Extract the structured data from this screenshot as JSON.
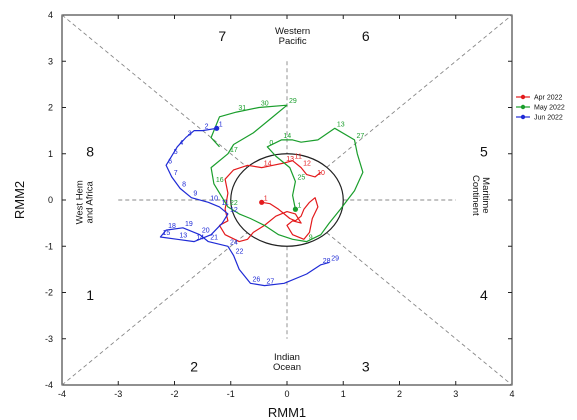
{
  "chart_data": {
    "type": "line",
    "xlabel": "RMM1",
    "ylabel": "RMM2",
    "xlim": [
      -4,
      4
    ],
    "ylim": [
      -4,
      4
    ],
    "xticks": [
      "-4",
      "-3",
      "-2",
      "-1",
      "0",
      "1",
      "2",
      "3",
      "4"
    ],
    "yticks": [
      "-4",
      "-3",
      "-2",
      "-1",
      "0",
      "1",
      "2",
      "3",
      "4"
    ],
    "phase_numbers": [
      {
        "label": "1",
        "x": -3.5,
        "y": -2.05
      },
      {
        "label": "2",
        "x": -1.65,
        "y": -3.6
      },
      {
        "label": "3",
        "x": 1.4,
        "y": -3.6
      },
      {
        "label": "4",
        "x": 3.5,
        "y": -2.05
      },
      {
        "label": "5",
        "x": 3.5,
        "y": 1.05
      },
      {
        "label": "6",
        "x": 1.4,
        "y": 3.55
      },
      {
        "label": "7",
        "x": -1.15,
        "y": 3.55
      },
      {
        "label": "8",
        "x": -3.5,
        "y": 1.05
      }
    ],
    "regions": [
      {
        "lines": [
          "Western",
          "Pacific"
        ],
        "x": 0.1,
        "y": 3.55,
        "rotate": 0
      },
      {
        "lines": [
          "Indian",
          "Ocean"
        ],
        "x": 0.0,
        "y": -3.5,
        "rotate": 0
      },
      {
        "lines": [
          "West Hem",
          "and Africa"
        ],
        "x": -3.6,
        "y": -0.05,
        "rotate": -90
      },
      {
        "lines": [
          "Maritime",
          "Continent"
        ],
        "x": 3.45,
        "y": 0.1,
        "rotate": 90
      }
    ],
    "unit_circle_radius": 1,
    "grid": false,
    "legend_position": "right",
    "series": [
      {
        "name": "Apr 2022",
        "color": "#e31a1c",
        "points": [
          [
            -0.45,
            -0.05
          ],
          [
            -0.3,
            -0.08
          ],
          [
            -0.15,
            -0.2
          ],
          [
            -0.05,
            -0.3
          ],
          [
            0.05,
            -0.4
          ],
          [
            0.15,
            -0.45
          ],
          [
            0.25,
            -0.35
          ],
          [
            0.3,
            -0.2
          ],
          [
            0.4,
            -0.05
          ],
          [
            0.5,
            0.05
          ],
          [
            0.55,
            -0.15
          ],
          [
            0.45,
            -0.4
          ],
          [
            0.4,
            -0.7
          ],
          [
            0.3,
            -0.85
          ],
          [
            0.1,
            -0.75
          ],
          [
            0.0,
            -0.55
          ],
          [
            0.1,
            -0.45
          ],
          [
            0.25,
            -0.5
          ],
          [
            0.15,
            -0.3
          ],
          [
            0.0,
            -0.25
          ],
          [
            -0.2,
            -0.35
          ],
          [
            -0.4,
            -0.55
          ],
          [
            -0.6,
            -0.7
          ],
          [
            -0.7,
            -0.85
          ],
          [
            -0.85,
            -0.9
          ],
          [
            -1.1,
            -0.75
          ],
          [
            -1.2,
            -0.55
          ],
          [
            -1.05,
            -0.45
          ],
          [
            -1.1,
            -0.2
          ],
          [
            -1.05,
            0.15
          ],
          [
            -1.1,
            0.45
          ],
          [
            -0.95,
            0.65
          ],
          [
            -0.7,
            0.75
          ],
          [
            -0.45,
            0.7
          ],
          [
            -0.25,
            0.75
          ],
          [
            -0.05,
            0.8
          ],
          [
            0.1,
            0.85
          ],
          [
            0.25,
            0.7
          ],
          [
            0.35,
            0.55
          ],
          [
            0.5,
            0.5
          ],
          [
            0.6,
            0.6
          ]
        ],
        "labels": [
          {
            "text": "1",
            "at": 0
          },
          {
            "text": "14",
            "at": 33
          },
          {
            "text": "13",
            "at": 35
          },
          {
            "text": "11",
            "at": 36
          },
          {
            "text": "12",
            "at": 37
          },
          {
            "text": "10",
            "at": 39
          }
        ],
        "start_marker": [
          -0.45,
          -0.05
        ]
      },
      {
        "name": "May 2022",
        "color": "#1a9e2c",
        "points": [
          [
            0.15,
            -0.2
          ],
          [
            0.1,
            0.1
          ],
          [
            0.15,
            0.4
          ],
          [
            0.05,
            0.7
          ],
          [
            -0.2,
            0.95
          ],
          [
            -0.35,
            1.15
          ],
          [
            -0.1,
            1.3
          ],
          [
            0.1,
            1.3
          ],
          [
            0.25,
            1.25
          ],
          [
            0.55,
            1.3
          ],
          [
            0.85,
            1.55
          ],
          [
            1.2,
            1.3
          ],
          [
            1.25,
            1.0
          ],
          [
            1.35,
            0.6
          ],
          [
            1.2,
            0.2
          ],
          [
            0.95,
            -0.2
          ],
          [
            0.75,
            -0.5
          ],
          [
            0.6,
            -0.75
          ],
          [
            0.35,
            -0.9
          ],
          [
            0.1,
            -0.85
          ],
          [
            -0.15,
            -0.75
          ],
          [
            -0.4,
            -0.55
          ],
          [
            -0.65,
            -0.4
          ],
          [
            -0.85,
            -0.3
          ],
          [
            -1.05,
            -0.15
          ],
          [
            -1.15,
            0.05
          ],
          [
            -1.3,
            0.35
          ],
          [
            -1.35,
            0.7
          ],
          [
            -1.05,
            1.0
          ],
          [
            -0.95,
            1.2
          ],
          [
            -0.6,
            1.45
          ],
          [
            -0.3,
            1.75
          ],
          [
            0.0,
            2.05
          ],
          [
            -0.5,
            2.0
          ],
          [
            -0.9,
            1.9
          ],
          [
            -1.2,
            1.8
          ],
          [
            -1.35,
            1.35
          ],
          [
            -1.2,
            1.15
          ]
        ],
        "labels": [
          {
            "text": "1",
            "at": 0
          },
          {
            "text": "9",
            "at": 18
          },
          {
            "text": "16",
            "at": 26
          },
          {
            "text": "17",
            "at": 28
          },
          {
            "text": "22",
            "at": 24
          },
          {
            "text": "25",
            "at": 2
          },
          {
            "text": "27",
            "at": 11
          },
          {
            "text": "29",
            "at": 32
          },
          {
            "text": "30",
            "at": 33
          },
          {
            "text": "31",
            "at": 34
          },
          {
            "text": "14",
            "at": 6
          },
          {
            "text": "13",
            "at": 10
          },
          {
            "text": "0",
            "at": 5
          }
        ],
        "start_marker": [
          0.15,
          -0.2
        ]
      },
      {
        "name": "Jun 2022",
        "color": "#1f2bd6",
        "points": [
          [
            -1.25,
            1.55
          ],
          [
            -1.5,
            1.5
          ],
          [
            -1.65,
            1.5
          ],
          [
            -1.8,
            1.35
          ],
          [
            -1.95,
            1.15
          ],
          [
            -2.05,
            0.95
          ],
          [
            -2.15,
            0.75
          ],
          [
            -2.05,
            0.5
          ],
          [
            -1.9,
            0.25
          ],
          [
            -1.7,
            0.05
          ],
          [
            -1.4,
            -0.05
          ],
          [
            -1.2,
            -0.15
          ],
          [
            -1.05,
            -0.3
          ],
          [
            -1.15,
            -0.5
          ],
          [
            -1.35,
            -0.75
          ],
          [
            -1.65,
            -0.9
          ],
          [
            -1.95,
            -0.85
          ],
          [
            -2.25,
            -0.8
          ],
          [
            -2.15,
            -0.65
          ],
          [
            -1.85,
            -0.6
          ],
          [
            -1.55,
            -0.75
          ],
          [
            -1.4,
            -0.9
          ],
          [
            -1.05,
            -1.0
          ],
          [
            -0.95,
            -1.2
          ],
          [
            -0.85,
            -1.5
          ],
          [
            -0.65,
            -1.8
          ],
          [
            -0.4,
            -1.85
          ],
          [
            -0.05,
            -1.8
          ],
          [
            0.35,
            -1.6
          ],
          [
            0.6,
            -1.4
          ],
          [
            0.75,
            -1.35
          ]
        ],
        "labels": [
          {
            "text": "1",
            "at": 0
          },
          {
            "text": "2",
            "at": 1
          },
          {
            "text": "3",
            "at": 3
          },
          {
            "text": "4",
            "at": 4
          },
          {
            "text": "5",
            "at": 5
          },
          {
            "text": "6",
            "at": 6
          },
          {
            "text": "7",
            "at": 7
          },
          {
            "text": "8",
            "at": 8
          },
          {
            "text": "9",
            "at": 9
          },
          {
            "text": "10",
            "at": 10
          },
          {
            "text": "11",
            "at": 11
          },
          {
            "text": "12",
            "at": 12
          },
          {
            "text": "13",
            "at": 16
          },
          {
            "text": "14",
            "at": 15
          },
          {
            "text": "15",
            "at": 17
          },
          {
            "text": "18",
            "at": 18
          },
          {
            "text": "19",
            "at": 19
          },
          {
            "text": "20",
            "at": 20
          },
          {
            "text": "21",
            "at": 21
          },
          {
            "text": "24",
            "at": 22
          },
          {
            "text": "22",
            "at": 23
          },
          {
            "text": "26",
            "at": 25
          },
          {
            "text": "27",
            "at": 26
          },
          {
            "text": "28",
            "at": 29
          },
          {
            "text": "29",
            "at": 30
          }
        ],
        "start_marker": [
          -1.25,
          1.55
        ]
      }
    ]
  }
}
